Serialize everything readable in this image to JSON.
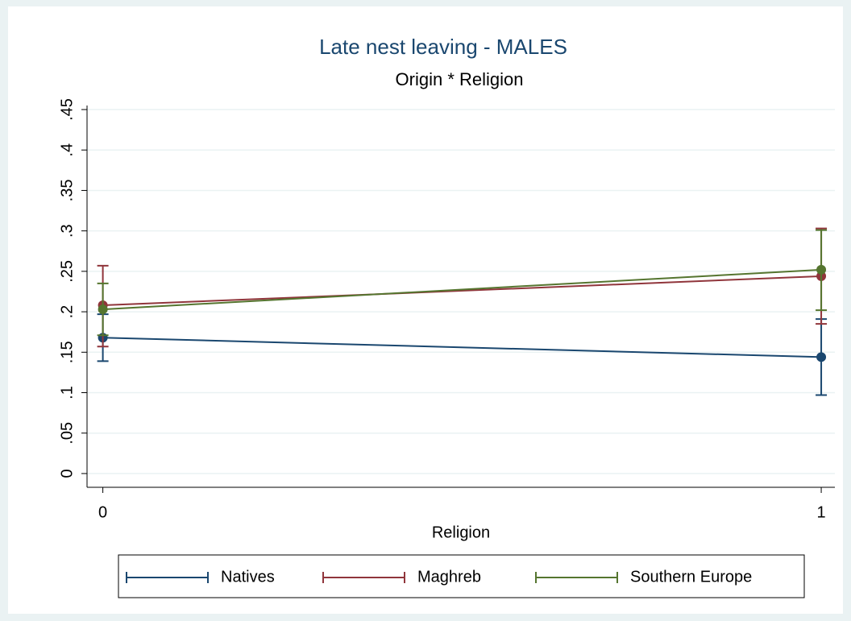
{
  "chart_data": {
    "type": "line",
    "title": "Late nest leaving - MALES",
    "subtitle": "Origin * Religion",
    "x_label": "Religion",
    "x": [
      0,
      1
    ],
    "xlim": [
      -0.022,
      1.019
    ],
    "xticks": [
      0,
      1
    ],
    "ylim": [
      -0.017,
      0.455
    ],
    "yticks": [
      0,
      {
        "value": 0.05,
        "label": ".05"
      },
      {
        "value": 0.1,
        "label": ".1"
      },
      {
        "value": 0.15,
        "label": ".15"
      },
      {
        "value": 0.2,
        "label": ".2"
      },
      {
        "value": 0.25,
        "label": ".25"
      },
      {
        "value": 0.3,
        "label": ".3"
      },
      {
        "value": 0.35,
        "label": ".35"
      },
      {
        "value": 0.4,
        "label": ".4"
      },
      {
        "value": 0.45,
        "label": ".45"
      }
    ],
    "grid": true,
    "legend": "bottom",
    "series": [
      {
        "name": "Natives",
        "color": "#1a476f",
        "values": [
          0.168,
          0.144
        ],
        "lower": [
          0.139,
          0.097
        ],
        "upper": [
          0.197,
          0.191
        ]
      },
      {
        "name": "Maghreb",
        "color": "#90353b",
        "values": [
          0.208,
          0.244
        ],
        "lower": [
          0.157,
          0.185
        ],
        "upper": [
          0.257,
          0.303
        ]
      },
      {
        "name": "Southern Europe",
        "color": "#55752f",
        "values": [
          0.203,
          0.252
        ],
        "lower": [
          0.171,
          0.202
        ],
        "upper": [
          0.235,
          0.301
        ]
      }
    ]
  }
}
